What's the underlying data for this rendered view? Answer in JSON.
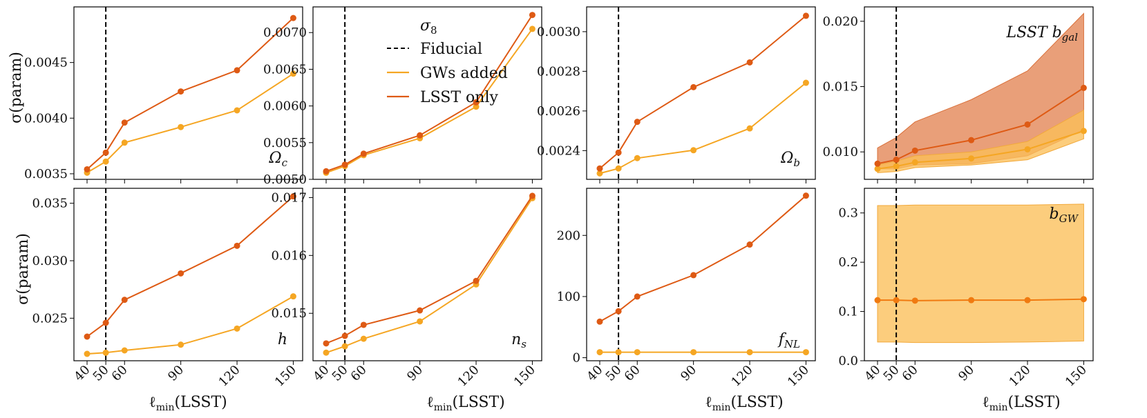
{
  "colors": {
    "gw": "#f5a623",
    "lsst": "#de5a14",
    "fiducial": "#000000",
    "band_gw": "#fbbf58",
    "band_lsst": "#e07a45"
  },
  "figure": {
    "x_values": [
      40,
      50,
      60,
      90,
      120,
      150
    ],
    "x_tick_labels": [
      "40",
      "50",
      "60",
      "90",
      "120",
      "150"
    ],
    "xlabel": "ℓmin(LSST)",
    "xlabel_main": "ℓ",
    "xlabel_sub": "min",
    "xlabel_tail": "(LSST)",
    "ylabel": "σ(param)",
    "fiducial_x": 50
  },
  "legend": {
    "title": "σ8",
    "title_main": "σ",
    "title_sub": "8",
    "fiducial": "Fiducial",
    "gw": "GWs added",
    "lsst": "LSST only"
  },
  "chart_data": [
    {
      "id": "omega_c",
      "type": "line",
      "label": "Ωc",
      "label_main": "Ω",
      "label_sub": "c",
      "label_pos": "bottom-right",
      "ylim": [
        0.00345,
        0.005
      ],
      "yticks": [
        0.0035,
        0.004,
        0.0045
      ],
      "ytick_labels": [
        "0.0035",
        "0.0040",
        "0.0045"
      ],
      "series": [
        {
          "name": "LSST only",
          "values": [
            0.00354,
            0.00369,
            0.00396,
            0.00424,
            0.00443,
            0.0049
          ]
        },
        {
          "name": "GWs added",
          "values": [
            0.00351,
            0.00361,
            0.00378,
            0.00392,
            0.00407,
            0.0044
          ]
        }
      ]
    },
    {
      "id": "sigma8",
      "type": "line",
      "label": "σ8",
      "label_pos": "legend",
      "ylim": [
        0.005,
        0.00735
      ],
      "yticks": [
        0.005,
        0.0055,
        0.006,
        0.0065,
        0.007
      ],
      "ytick_labels": [
        "0.0050",
        "0.0055",
        "0.0060",
        "0.0065",
        "0.0070"
      ],
      "series": [
        {
          "name": "LSST only",
          "values": [
            0.00511,
            0.0052,
            0.00535,
            0.0056,
            0.00605,
            0.00724
          ]
        },
        {
          "name": "GWs added",
          "values": [
            0.00509,
            0.00518,
            0.00533,
            0.00556,
            0.00599,
            0.00705
          ]
        }
      ]
    },
    {
      "id": "omega_b",
      "type": "line",
      "label": "Ωb",
      "label_main": "Ω",
      "label_sub": "b",
      "label_pos": "bottom-right",
      "ylim": [
        0.002255,
        0.003125
      ],
      "yticks": [
        0.0024,
        0.0026,
        0.0028,
        0.003
      ],
      "ytick_labels": [
        "0.0024",
        "0.0026",
        "0.0028",
        "0.0030"
      ],
      "series": [
        {
          "name": "LSST only",
          "values": [
            0.00231,
            0.00239,
            0.002545,
            0.00272,
            0.002845,
            0.00308
          ]
        },
        {
          "name": "GWs added",
          "values": [
            0.002285,
            0.00231,
            0.002362,
            0.002402,
            0.002512,
            0.002742
          ]
        }
      ]
    },
    {
      "id": "b_gal",
      "type": "area",
      "label": "LSST bgal",
      "label_main": "LSST b",
      "label_sub": "gal",
      "label_pos": "top-right",
      "ylim": [
        0.0079,
        0.0211
      ],
      "yticks": [
        0.01,
        0.015,
        0.02
      ],
      "ytick_labels": [
        "0.010",
        "0.015",
        "0.020"
      ],
      "series": [
        {
          "name": "LSST only",
          "values": [
            0.0091,
            0.0094,
            0.0101,
            0.0109,
            0.0121,
            0.0149
          ],
          "band_low": [
            0.0087,
            0.0087,
            0.009,
            0.0091,
            0.0097,
            0.0117
          ],
          "band_high": [
            0.0103,
            0.0111,
            0.0123,
            0.014,
            0.0162,
            0.0206
          ]
        },
        {
          "name": "GWs added",
          "values": [
            0.0087,
            0.0089,
            0.0092,
            0.0095,
            0.0102,
            0.0116
          ],
          "band_low": [
            0.0084,
            0.0085,
            0.0088,
            0.009,
            0.0094,
            0.011
          ],
          "band_high": [
            0.009,
            0.0093,
            0.0097,
            0.01,
            0.0108,
            0.0132
          ]
        }
      ]
    },
    {
      "id": "h",
      "type": "line",
      "label": "h",
      "label_pos": "bottom-right",
      "ylim": [
        0.0213,
        0.0363
      ],
      "yticks": [
        0.025,
        0.03,
        0.035
      ],
      "ytick_labels": [
        "0.025",
        "0.030",
        "0.035"
      ],
      "series": [
        {
          "name": "LSST only",
          "values": [
            0.0234,
            0.0246,
            0.0266,
            0.0289,
            0.0313,
            0.0356
          ]
        },
        {
          "name": "GWs added",
          "values": [
            0.0219,
            0.022,
            0.0222,
            0.0227,
            0.0241,
            0.0269
          ]
        }
      ]
    },
    {
      "id": "n_s",
      "type": "line",
      "label": "ns",
      "label_main": "n",
      "label_sub": "s",
      "label_pos": "bottom-right",
      "ylim": [
        0.01418,
        0.01716
      ],
      "yticks": [
        0.015,
        0.016,
        0.017
      ],
      "ytick_labels": [
        "0.015",
        "0.016",
        "0.017"
      ],
      "series": [
        {
          "name": "LSST only",
          "values": [
            0.01448,
            0.01461,
            0.0148,
            0.01505,
            0.01556,
            0.01703
          ]
        },
        {
          "name": "GWs added",
          "values": [
            0.01432,
            0.01443,
            0.01456,
            0.01486,
            0.0155,
            0.01699
          ]
        }
      ]
    },
    {
      "id": "f_nl",
      "type": "line",
      "label": "fNL",
      "label_main": "f",
      "label_sub": "NL",
      "label_pos": "bottom-right",
      "ylim": [
        -5,
        277
      ],
      "yticks": [
        0,
        100,
        200
      ],
      "ytick_labels": [
        "0",
        "100",
        "200"
      ],
      "series": [
        {
          "name": "LSST only",
          "values": [
            59,
            76,
            100,
            135,
            185,
            265
          ]
        },
        {
          "name": "GWs added",
          "values": [
            9,
            9,
            9,
            9,
            9,
            9
          ]
        }
      ]
    },
    {
      "id": "b_gw",
      "type": "area",
      "label": "bGW",
      "label_main": "b",
      "label_sub": "GW",
      "label_pos": "top-right",
      "ylim": [
        0,
        0.35
      ],
      "yticks": [
        0.0,
        0.1,
        0.2,
        0.3
      ],
      "ytick_labels": [
        "0.0",
        "0.1",
        "0.2",
        "0.3"
      ],
      "series": [
        {
          "name": "GWs added",
          "values": [
            0.123,
            0.123,
            0.122,
            0.123,
            0.123,
            0.125
          ],
          "band_low": [
            0.038,
            0.038,
            0.037,
            0.037,
            0.038,
            0.04
          ],
          "band_high": [
            0.315,
            0.315,
            0.316,
            0.316,
            0.316,
            0.318
          ]
        }
      ]
    }
  ]
}
